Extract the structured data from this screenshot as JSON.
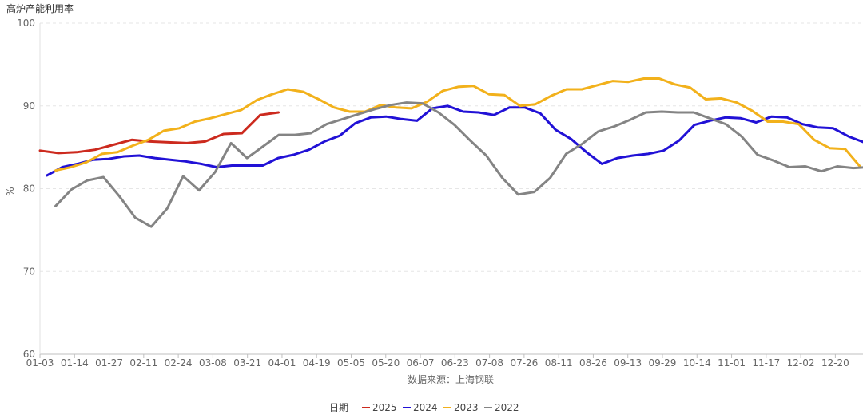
{
  "chart_data": {
    "type": "line",
    "title": "高炉产能利用率",
    "ylabel": "%",
    "xlabel": "数据来源：上海钢联",
    "ylim": [
      60,
      100
    ],
    "yticks": [
      60,
      70,
      80,
      90,
      100
    ],
    "x_tick_labels": [
      "01-03",
      "01-14",
      "01-27",
      "02-11",
      "02-24",
      "03-08",
      "03-21",
      "04-01",
      "04-19",
      "05-05",
      "05-20",
      "06-07",
      "06-23",
      "07-08",
      "07-26",
      "08-11",
      "08-26",
      "09-13",
      "09-29",
      "10-14",
      "11-01",
      "11-17",
      "12-02",
      "12-20"
    ],
    "grid": "horizontal-dashed",
    "legend_title": "日期",
    "legend_position": "bottom-center",
    "series": [
      {
        "name": "2025",
        "color": "#cc2a1e",
        "values": [
          84.6,
          84.3,
          84.4,
          84.7,
          85.3,
          85.9,
          85.7,
          85.6,
          85.5,
          85.7,
          86.6,
          86.7,
          88.9,
          89.2
        ]
      },
      {
        "name": "2024",
        "color": "#2111d6",
        "values": [
          81.6,
          82.6,
          83.0,
          83.5,
          83.6,
          83.9,
          84.0,
          83.7,
          83.5,
          83.3,
          83.0,
          82.6,
          82.8,
          82.8,
          82.8,
          83.7,
          84.1,
          84.7,
          85.7,
          86.4,
          87.9,
          88.6,
          88.7,
          88.4,
          88.2,
          89.7,
          90.0,
          89.3,
          89.2,
          88.9,
          89.8,
          89.8,
          89.1,
          87.1,
          86.0,
          84.4,
          83.0,
          83.7,
          84.0,
          84.2,
          84.6,
          85.8,
          87.7,
          88.2,
          88.6,
          88.5,
          88.0,
          88.7,
          88.6,
          87.8,
          87.4,
          87.3,
          86.3,
          85.6
        ]
      },
      {
        "name": "2023",
        "color": "#f2b11b",
        "values": [
          82.2,
          82.6,
          83.2,
          84.2,
          84.4,
          85.2,
          85.9,
          87.0,
          87.3,
          88.1,
          88.5,
          89.0,
          89.5,
          90.7,
          91.4,
          92.0,
          91.7,
          90.8,
          89.8,
          89.3,
          89.3,
          90.1,
          89.8,
          89.7,
          90.5,
          91.8,
          92.3,
          92.4,
          91.4,
          91.3,
          90.0,
          90.2,
          91.2,
          92.0,
          92.0,
          92.5,
          93.0,
          92.9,
          93.3,
          93.3,
          92.6,
          92.2,
          90.8,
          90.9,
          90.4,
          89.4,
          88.1,
          88.1,
          87.8,
          85.9,
          84.9,
          84.8,
          82.6
        ]
      },
      {
        "name": "2022",
        "color": "#848484",
        "values": [
          77.9,
          79.9,
          81.0,
          81.4,
          79.1,
          76.5,
          75.4,
          77.6,
          81.5,
          79.8,
          82.0,
          85.5,
          83.7,
          85.1,
          86.5,
          86.5,
          86.7,
          87.8,
          88.4,
          89.0,
          89.6,
          90.1,
          90.4,
          90.3,
          89.2,
          87.7,
          85.8,
          84.0,
          81.3,
          79.3,
          79.6,
          81.3,
          84.2,
          85.4,
          86.9,
          87.5,
          88.3,
          89.2,
          89.3,
          89.2,
          89.2,
          88.5,
          87.8,
          86.3,
          84.1,
          83.4,
          82.6,
          82.7,
          82.1,
          82.7,
          82.5,
          82.6
        ]
      }
    ]
  }
}
